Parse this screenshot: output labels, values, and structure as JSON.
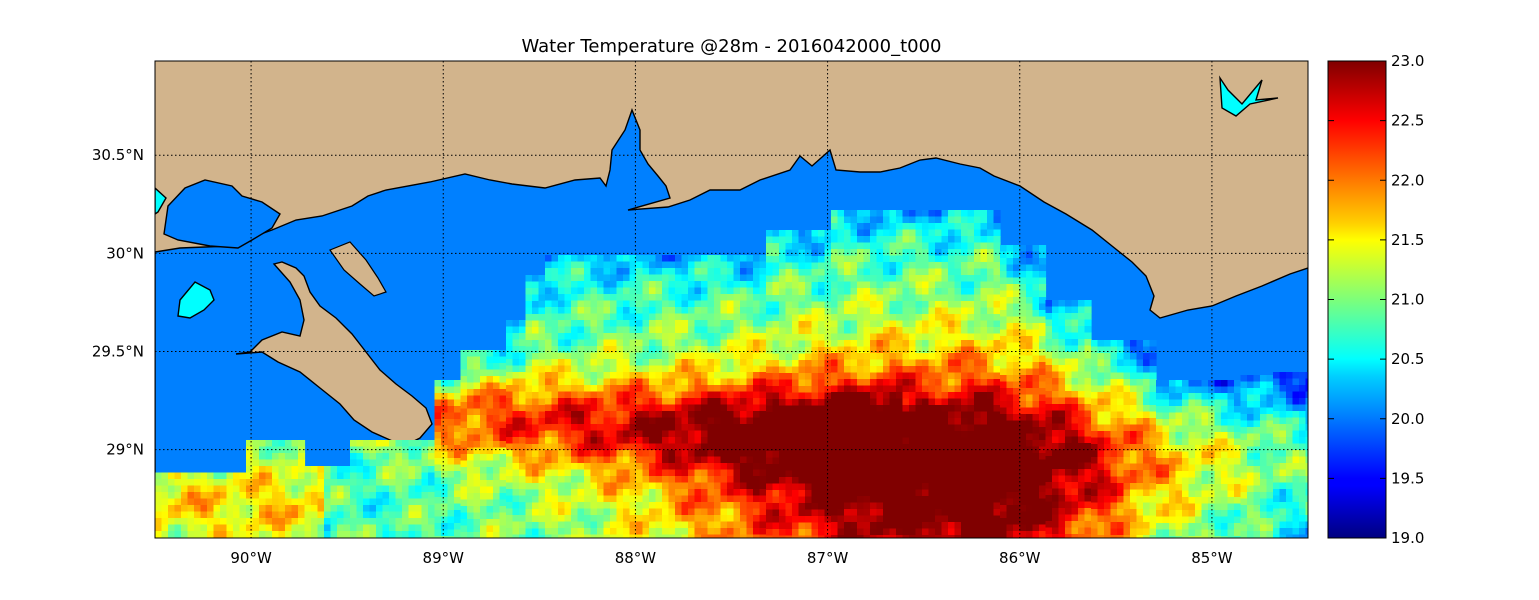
{
  "figure": {
    "title": "Water Temperature @28m - 2016042000_t000"
  },
  "map": {
    "lon_range": [
      -90.5,
      -84.5
    ],
    "lat_range": [
      28.55,
      30.98
    ],
    "x_ticks": [
      {
        "lon": -90,
        "label": "90°W"
      },
      {
        "lon": -89,
        "label": "89°W"
      },
      {
        "lon": -88,
        "label": "88°W"
      },
      {
        "lon": -87,
        "label": "87°W"
      },
      {
        "lon": -86,
        "label": "86°W"
      },
      {
        "lon": -85,
        "label": "85°W"
      }
    ],
    "y_ticks": [
      {
        "lat": 30.5,
        "label": "30.5°N"
      },
      {
        "lat": 30.0,
        "label": "30°N"
      },
      {
        "lat": 29.5,
        "label": "29.5°N"
      },
      {
        "lat": 29.0,
        "label": "29°N"
      }
    ],
    "grid": "dotted",
    "colors": {
      "land": "#d2b48c",
      "water_no_data": "#0080ff",
      "lakes": "#00ffff",
      "coastline": "#000000"
    }
  },
  "colorbar": {
    "colormap": "jet",
    "range": [
      19.0,
      23.0
    ],
    "ticks": [
      "23.0",
      "22.5",
      "22.0",
      "21.5",
      "21.0",
      "20.5",
      "20.0",
      "19.5",
      "19.0"
    ]
  }
}
